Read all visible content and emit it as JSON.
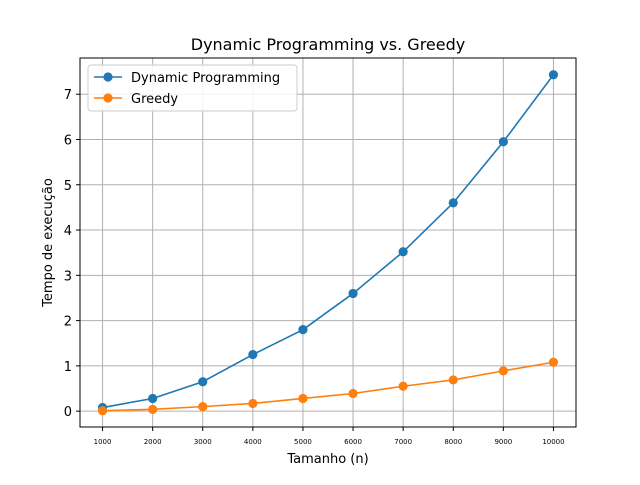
{
  "chart_data": {
    "type": "line",
    "title": "Dynamic Programming vs. Greedy",
    "xlabel": "Tamanho (n)",
    "ylabel": "Tempo de execução",
    "x": [
      1000,
      2000,
      3000,
      4000,
      5000,
      6000,
      7000,
      8000,
      9000,
      10000
    ],
    "x_tick_labels": [
      "1000",
      "2000",
      "3000",
      "4000",
      "5000",
      "6000",
      "7000",
      "8000",
      "9000",
      "10000"
    ],
    "y_ticks": [
      0,
      1,
      2,
      3,
      4,
      5,
      6,
      7
    ],
    "xlim": [
      550,
      10450
    ],
    "ylim": [
      -0.35,
      7.8
    ],
    "grid": true,
    "legend_position": "top-left",
    "series": [
      {
        "name": "Dynamic Programming",
        "color": "#1f77b4",
        "marker": "circle",
        "values": [
          0.08,
          0.28,
          0.65,
          1.25,
          1.8,
          2.6,
          3.52,
          4.6,
          5.95,
          7.43
        ]
      },
      {
        "name": "Greedy",
        "color": "#ff7f0e",
        "marker": "circle",
        "values": [
          0.01,
          0.04,
          0.1,
          0.17,
          0.28,
          0.39,
          0.55,
          0.69,
          0.89,
          1.08
        ]
      }
    ]
  }
}
